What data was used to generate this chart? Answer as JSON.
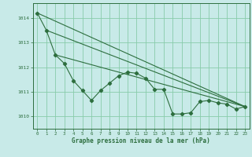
{
  "title": "Graphe pression niveau de la mer (hPa)",
  "bg_color": "#c8eae8",
  "grid_color": "#88ccaa",
  "line_color": "#2d6e3e",
  "text_color": "#2d6e3e",
  "ylim": [
    1009.5,
    1014.6
  ],
  "xlim": [
    -0.5,
    23.5
  ],
  "yticks": [
    1010,
    1011,
    1012,
    1013,
    1014
  ],
  "xticks": [
    0,
    1,
    2,
    3,
    4,
    5,
    6,
    7,
    8,
    9,
    10,
    11,
    12,
    13,
    14,
    15,
    16,
    17,
    18,
    19,
    20,
    21,
    22,
    23
  ],
  "series_x": [
    0,
    1,
    2,
    3,
    4,
    5,
    6,
    7,
    8,
    9,
    10,
    11,
    12,
    13,
    14,
    15,
    16,
    17,
    18,
    19,
    20,
    21,
    22,
    23
  ],
  "series_y": [
    1014.2,
    1013.5,
    1012.5,
    1012.15,
    1011.45,
    1011.05,
    1010.65,
    1011.05,
    1011.35,
    1011.65,
    1011.8,
    1011.75,
    1011.55,
    1011.1,
    1011.1,
    1010.1,
    1010.1,
    1010.15,
    1010.6,
    1010.65,
    1010.55,
    1010.5,
    1010.3,
    1010.4
  ],
  "trend1_x": [
    0,
    23
  ],
  "trend1_y": [
    1014.2,
    1010.4
  ],
  "trend2_x": [
    1,
    23
  ],
  "trend2_y": [
    1013.5,
    1010.4
  ],
  "trend3_x": [
    2,
    23
  ],
  "trend3_y": [
    1012.5,
    1010.4
  ]
}
